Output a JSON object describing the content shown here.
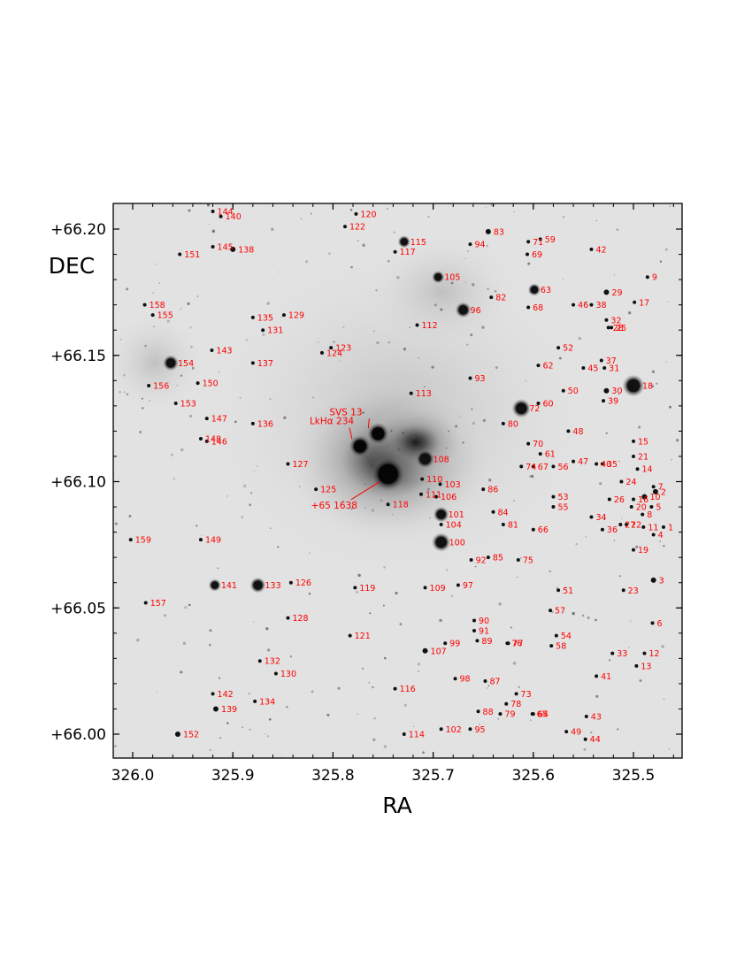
{
  "chart_data": {
    "type": "scatter",
    "title": "",
    "xlabel": "RA",
    "ylabel": "DEC",
    "xlim": [
      326.01,
      325.465
    ],
    "ylim": [
      65.99,
      66.21
    ],
    "xticks": [
      "326.0",
      "325.9",
      "325.8",
      "325.7",
      "325.6",
      "325.5"
    ],
    "xtick_values": [
      326.0,
      325.9,
      325.8,
      325.7,
      325.6,
      325.5
    ],
    "yticks": [
      "+66.00",
      "+66.05",
      "+66.10",
      "+66.15",
      "+66.20"
    ],
    "ytick_values": [
      66.0,
      66.05,
      66.1,
      66.15,
      66.2
    ],
    "grid": false,
    "background": "grayscale sky image with nebulosity",
    "label_color": "#ff0000",
    "named_sources": [
      {
        "label": "SVS 13",
        "x": 325.755,
        "y": 66.119
      },
      {
        "label": "LkHα 234",
        "x": 325.773,
        "y": 66.114
      },
      {
        "label": "+65 1638",
        "x": 325.745,
        "y": 66.103
      }
    ],
    "stars": [
      {
        "label": "1",
        "x": 325.47,
        "y": 66.082
      },
      {
        "label": "2",
        "x": 325.478,
        "y": 66.096
      },
      {
        "label": "3",
        "x": 325.48,
        "y": 66.061
      },
      {
        "label": "4",
        "x": 325.48,
        "y": 66.079
      },
      {
        "label": "5",
        "x": 325.482,
        "y": 66.09
      },
      {
        "label": "6",
        "x": 325.481,
        "y": 66.044
      },
      {
        "label": "7",
        "x": 325.48,
        "y": 66.098
      },
      {
        "label": "8",
        "x": 325.491,
        "y": 66.087
      },
      {
        "label": "9",
        "x": 325.486,
        "y": 66.181
      },
      {
        "label": "10",
        "x": 325.489,
        "y": 66.094
      },
      {
        "label": "11",
        "x": 325.49,
        "y": 66.082
      },
      {
        "label": "12",
        "x": 325.489,
        "y": 66.032
      },
      {
        "label": "13",
        "x": 325.497,
        "y": 66.027
      },
      {
        "label": "14",
        "x": 325.496,
        "y": 66.105
      },
      {
        "label": "15",
        "x": 325.5,
        "y": 66.116
      },
      {
        "label": "16",
        "x": 325.5,
        "y": 66.093
      },
      {
        "label": "17",
        "x": 325.499,
        "y": 66.171
      },
      {
        "label": "18",
        "x": 325.5,
        "y": 66.138
      },
      {
        "label": "19",
        "x": 325.5,
        "y": 66.073
      },
      {
        "label": "20",
        "x": 325.502,
        "y": 66.09
      },
      {
        "label": "21",
        "x": 325.5,
        "y": 66.11
      },
      {
        "label": "22",
        "x": 325.507,
        "y": 66.083
      },
      {
        "label": "23",
        "x": 325.51,
        "y": 66.057
      },
      {
        "label": "24",
        "x": 325.512,
        "y": 66.1
      },
      {
        "label": "25",
        "x": 325.522,
        "y": 66.161
      },
      {
        "label": "26",
        "x": 325.524,
        "y": 66.093
      },
      {
        "label": "27",
        "x": 325.513,
        "y": 66.083
      },
      {
        "label": "28",
        "x": 325.525,
        "y": 66.161
      },
      {
        "label": "29",
        "x": 325.527,
        "y": 66.175
      },
      {
        "label": "30",
        "x": 325.527,
        "y": 66.136
      },
      {
        "label": "31",
        "x": 325.529,
        "y": 66.145
      },
      {
        "label": "32",
        "x": 325.527,
        "y": 66.164
      },
      {
        "label": "33",
        "x": 325.521,
        "y": 66.032
      },
      {
        "label": "34",
        "x": 325.542,
        "y": 66.086
      },
      {
        "label": "35",
        "x": 325.531,
        "y": 66.107
      },
      {
        "label": "36",
        "x": 325.531,
        "y": 66.081
      },
      {
        "label": "37",
        "x": 325.532,
        "y": 66.148
      },
      {
        "label": "38",
        "x": 325.542,
        "y": 66.17
      },
      {
        "label": "39",
        "x": 325.53,
        "y": 66.132
      },
      {
        "label": "40",
        "x": 325.537,
        "y": 66.107
      },
      {
        "label": "41",
        "x": 325.537,
        "y": 66.023
      },
      {
        "label": "42",
        "x": 325.542,
        "y": 66.192
      },
      {
        "label": "43",
        "x": 325.547,
        "y": 66.007
      },
      {
        "label": "44",
        "x": 325.548,
        "y": 65.998
      },
      {
        "label": "45",
        "x": 325.55,
        "y": 66.145
      },
      {
        "label": "46",
        "x": 325.56,
        "y": 66.17
      },
      {
        "label": "47",
        "x": 325.56,
        "y": 66.108
      },
      {
        "label": "48",
        "x": 325.565,
        "y": 66.12
      },
      {
        "label": "49",
        "x": 325.567,
        "y": 66.001
      },
      {
        "label": "50",
        "x": 325.57,
        "y": 66.136
      },
      {
        "label": "51",
        "x": 325.575,
        "y": 66.057
      },
      {
        "label": "52",
        "x": 325.575,
        "y": 66.153
      },
      {
        "label": "53",
        "x": 325.58,
        "y": 66.094
      },
      {
        "label": "54",
        "x": 325.577,
        "y": 66.039
      },
      {
        "label": "55",
        "x": 325.58,
        "y": 66.09
      },
      {
        "label": "56",
        "x": 325.58,
        "y": 66.106
      },
      {
        "label": "57",
        "x": 325.583,
        "y": 66.049
      },
      {
        "label": "58",
        "x": 325.582,
        "y": 66.035
      },
      {
        "label": "59",
        "x": 325.593,
        "y": 66.196
      },
      {
        "label": "60",
        "x": 325.595,
        "y": 66.131
      },
      {
        "label": "61",
        "x": 325.593,
        "y": 66.111
      },
      {
        "label": "62",
        "x": 325.595,
        "y": 66.146
      },
      {
        "label": "63",
        "x": 325.599,
        "y": 66.176
      },
      {
        "label": "64",
        "x": 325.6,
        "y": 66.008
      },
      {
        "label": "65",
        "x": 325.601,
        "y": 66.008
      },
      {
        "label": "66",
        "x": 325.6,
        "y": 66.081
      },
      {
        "label": "67",
        "x": 325.6,
        "y": 66.106
      },
      {
        "label": "68",
        "x": 325.605,
        "y": 66.169
      },
      {
        "label": "69",
        "x": 325.606,
        "y": 66.19
      },
      {
        "label": "70",
        "x": 325.605,
        "y": 66.115
      },
      {
        "label": "71",
        "x": 325.605,
        "y": 66.195
      },
      {
        "label": "72",
        "x": 325.612,
        "y": 66.129
      },
      {
        "label": "73",
        "x": 325.617,
        "y": 66.016
      },
      {
        "label": "74",
        "x": 325.612,
        "y": 66.106
      },
      {
        "label": "75",
        "x": 325.615,
        "y": 66.069
      },
      {
        "label": "76",
        "x": 325.626,
        "y": 66.036
      },
      {
        "label": "77",
        "x": 325.625,
        "y": 66.036
      },
      {
        "label": "78",
        "x": 325.627,
        "y": 66.012
      },
      {
        "label": "79",
        "x": 325.633,
        "y": 66.008
      },
      {
        "label": "80",
        "x": 325.63,
        "y": 66.123
      },
      {
        "label": "81",
        "x": 325.63,
        "y": 66.083
      },
      {
        "label": "82",
        "x": 325.642,
        "y": 66.173
      },
      {
        "label": "83",
        "x": 325.645,
        "y": 66.199
      },
      {
        "label": "84",
        "x": 325.64,
        "y": 66.088
      },
      {
        "label": "85",
        "x": 325.645,
        "y": 66.07
      },
      {
        "label": "86",
        "x": 325.65,
        "y": 66.097
      },
      {
        "label": "87",
        "x": 325.648,
        "y": 66.021
      },
      {
        "label": "88",
        "x": 325.655,
        "y": 66.009
      },
      {
        "label": "89",
        "x": 325.656,
        "y": 66.037
      },
      {
        "label": "90",
        "x": 325.659,
        "y": 66.045
      },
      {
        "label": "91",
        "x": 325.659,
        "y": 66.041
      },
      {
        "label": "92",
        "x": 325.662,
        "y": 66.069
      },
      {
        "label": "93",
        "x": 325.663,
        "y": 66.141
      },
      {
        "label": "94",
        "x": 325.663,
        "y": 66.194
      },
      {
        "label": "95",
        "x": 325.663,
        "y": 66.002
      },
      {
        "label": "96",
        "x": 325.67,
        "y": 66.168
      },
      {
        "label": "97",
        "x": 325.675,
        "y": 66.059
      },
      {
        "label": "98",
        "x": 325.678,
        "y": 66.022
      },
      {
        "label": "99",
        "x": 325.688,
        "y": 66.036
      },
      {
        "label": "100",
        "x": 325.692,
        "y": 66.076
      },
      {
        "label": "101",
        "x": 325.692,
        "y": 66.087
      },
      {
        "label": "102",
        "x": 325.692,
        "y": 66.002
      },
      {
        "label": "103",
        "x": 325.693,
        "y": 66.099
      },
      {
        "label": "104",
        "x": 325.692,
        "y": 66.083
      },
      {
        "label": "105",
        "x": 325.695,
        "y": 66.181
      },
      {
        "label": "106",
        "x": 325.697,
        "y": 66.094
      },
      {
        "label": "107",
        "x": 325.708,
        "y": 66.033
      },
      {
        "label": "108",
        "x": 325.708,
        "y": 66.109
      },
      {
        "label": "109",
        "x": 325.708,
        "y": 66.058
      },
      {
        "label": "110",
        "x": 325.711,
        "y": 66.101
      },
      {
        "label": "111",
        "x": 325.712,
        "y": 66.095
      },
      {
        "label": "112",
        "x": 325.716,
        "y": 66.162
      },
      {
        "label": "113",
        "x": 325.722,
        "y": 66.135
      },
      {
        "label": "114",
        "x": 325.729,
        "y": 66.0
      },
      {
        "label": "115",
        "x": 325.729,
        "y": 66.195
      },
      {
        "label": "116",
        "x": 325.738,
        "y": 66.018
      },
      {
        "label": "117",
        "x": 325.738,
        "y": 66.191
      },
      {
        "label": "118",
        "x": 325.745,
        "y": 66.091
      },
      {
        "label": "119",
        "x": 325.778,
        "y": 66.058
      },
      {
        "label": "120",
        "x": 325.777,
        "y": 66.206
      },
      {
        "label": "121",
        "x": 325.783,
        "y": 66.039
      },
      {
        "label": "122",
        "x": 325.788,
        "y": 66.201
      },
      {
        "label": "123",
        "x": 325.802,
        "y": 66.153
      },
      {
        "label": "124",
        "x": 325.811,
        "y": 66.151
      },
      {
        "label": "125",
        "x": 325.817,
        "y": 66.097
      },
      {
        "label": "126",
        "x": 325.842,
        "y": 66.06
      },
      {
        "label": "127",
        "x": 325.845,
        "y": 66.107
      },
      {
        "label": "128",
        "x": 325.845,
        "y": 66.046
      },
      {
        "label": "129",
        "x": 325.849,
        "y": 66.166
      },
      {
        "label": "130",
        "x": 325.857,
        "y": 66.024
      },
      {
        "label": "131",
        "x": 325.87,
        "y": 66.16
      },
      {
        "label": "132",
        "x": 325.873,
        "y": 66.029
      },
      {
        "label": "133",
        "x": 325.875,
        "y": 66.059
      },
      {
        "label": "134",
        "x": 325.878,
        "y": 66.013
      },
      {
        "label": "135",
        "x": 325.88,
        "y": 66.165
      },
      {
        "label": "136",
        "x": 325.88,
        "y": 66.123
      },
      {
        "label": "137",
        "x": 325.88,
        "y": 66.147
      },
      {
        "label": "138",
        "x": 325.9,
        "y": 66.192
      },
      {
        "label": "139",
        "x": 325.917,
        "y": 66.01
      },
      {
        "label": "140",
        "x": 325.912,
        "y": 66.205
      },
      {
        "label": "141",
        "x": 325.918,
        "y": 66.059
      },
      {
        "label": "142",
        "x": 325.92,
        "y": 66.016
      },
      {
        "label": "143",
        "x": 325.921,
        "y": 66.152
      },
      {
        "label": "144",
        "x": 325.92,
        "y": 66.207
      },
      {
        "label": "145",
        "x": 325.92,
        "y": 66.193
      },
      {
        "label": "146",
        "x": 325.926,
        "y": 66.116
      },
      {
        "label": "147",
        "x": 325.926,
        "y": 66.125
      },
      {
        "label": "148",
        "x": 325.932,
        "y": 66.117
      },
      {
        "label": "149",
        "x": 325.932,
        "y": 66.077
      },
      {
        "label": "150",
        "x": 325.935,
        "y": 66.139
      },
      {
        "label": "151",
        "x": 325.953,
        "y": 66.19
      },
      {
        "label": "152",
        "x": 325.955,
        "y": 66.0
      },
      {
        "label": "153",
        "x": 325.957,
        "y": 66.131
      },
      {
        "label": "154",
        "x": 325.962,
        "y": 66.147
      },
      {
        "label": "155",
        "x": 325.98,
        "y": 66.166
      },
      {
        "label": "156",
        "x": 325.984,
        "y": 66.138
      },
      {
        "label": "157",
        "x": 325.987,
        "y": 66.052
      },
      {
        "label": "158",
        "x": 325.988,
        "y": 66.17
      },
      {
        "label": "159",
        "x": 326.002,
        "y": 66.077
      }
    ]
  }
}
